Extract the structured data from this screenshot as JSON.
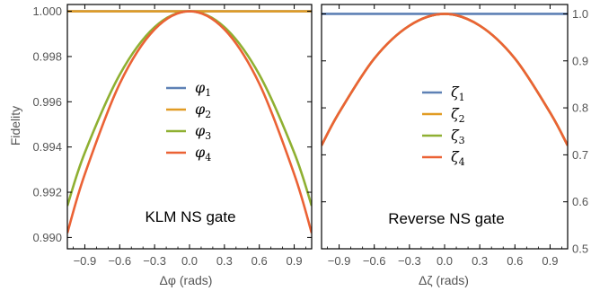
{
  "chart_data": [
    {
      "type": "line",
      "annotation": "KLM NS gate",
      "xlabel": "Δφ (rads)",
      "ylabel": "Fidelity",
      "xlim": [
        -1.05,
        1.05
      ],
      "ylim": [
        0.9895,
        1.0003
      ],
      "xticks": [
        -0.9,
        -0.6,
        -0.3,
        0.0,
        0.3,
        0.6,
        0.9
      ],
      "xtick_labels": [
        "−0.9",
        "−0.6",
        "−0.3",
        "0.0",
        "0.3",
        "0.6",
        "0.9"
      ],
      "yticks": [
        0.99,
        0.992,
        0.994,
        0.996,
        0.998,
        1.0
      ],
      "ytick_labels": [
        "0.990",
        "0.992",
        "0.994",
        "0.996",
        "0.998",
        "1.000"
      ],
      "legend_position": "center",
      "legend_symbol": "φ",
      "series": [
        {
          "name": "φ1",
          "sub": "1",
          "color": "#5e81b5",
          "x": [
            -1.05,
            0,
            1.05
          ],
          "y": [
            1.0,
            1.0,
            1.0
          ]
        },
        {
          "name": "φ2",
          "sub": "2",
          "color": "#e19c24",
          "x": [
            -1.05,
            0,
            1.05
          ],
          "y": [
            1.0,
            1.0,
            1.0
          ]
        },
        {
          "name": "φ3",
          "sub": "3",
          "color": "#8fb032",
          "x": [
            -1.05,
            -0.9,
            -0.6,
            -0.3,
            0,
            0.3,
            0.6,
            0.9,
            1.05
          ],
          "y": [
            0.9914,
            0.99375,
            0.9972,
            0.9993,
            1.0,
            0.9993,
            0.9972,
            0.99375,
            0.9914
          ]
        },
        {
          "name": "φ4",
          "sub": "4",
          "color": "#eb6235",
          "x": [
            -1.05,
            -0.9,
            -0.6,
            -0.3,
            0,
            0.3,
            0.6,
            0.9,
            1.05
          ],
          "y": [
            0.9902,
            0.9928,
            0.9968,
            0.9992,
            1.0,
            0.9992,
            0.9968,
            0.9928,
            0.9902
          ]
        }
      ]
    },
    {
      "type": "line",
      "annotation": "Reverse NS gate",
      "xlabel": "Δζ (rads)",
      "ylabel": "",
      "xlim": [
        -1.05,
        1.05
      ],
      "ylim": [
        0.5,
        1.02
      ],
      "xticks": [
        -0.9,
        -0.6,
        -0.3,
        0.0,
        0.3,
        0.6,
        0.9
      ],
      "xtick_labels": [
        "−0.9",
        "−0.6",
        "−0.3",
        "0.0",
        "0.3",
        "0.6",
        "0.9"
      ],
      "yticks": [
        0.5,
        0.6,
        0.7,
        0.8,
        0.9,
        1.0
      ],
      "ytick_labels": [
        "0.5",
        "0.6",
        "0.7",
        "0.8",
        "0.9",
        "1.0"
      ],
      "y_axis_side": "right",
      "legend_position": "center",
      "legend_symbol": "ζ",
      "series": [
        {
          "name": "ζ1",
          "sub": "1",
          "color": "#5e81b5",
          "x": [
            -1.05,
            0,
            1.05
          ],
          "y": [
            1.0,
            1.0,
            1.0
          ]
        },
        {
          "name": "ζ2",
          "sub": "2",
          "color": "#e19c24",
          "x": [
            -1.05,
            -0.9,
            -0.6,
            -0.3,
            0,
            0.3,
            0.6,
            0.9,
            1.05
          ],
          "y": [
            0.72,
            0.79,
            0.905,
            0.975,
            1.0,
            0.975,
            0.905,
            0.79,
            0.72
          ]
        },
        {
          "name": "ζ3",
          "sub": "3",
          "color": "#8fb032",
          "x": [
            -1.05,
            -0.9,
            -0.6,
            -0.3,
            0,
            0.3,
            0.6,
            0.9,
            1.05
          ],
          "y": [
            0.72,
            0.79,
            0.905,
            0.975,
            1.0,
            0.975,
            0.905,
            0.79,
            0.72
          ]
        },
        {
          "name": "ζ4",
          "sub": "4",
          "color": "#eb6235",
          "x": [
            -1.05,
            -0.9,
            -0.6,
            -0.3,
            0,
            0.3,
            0.6,
            0.9,
            1.05
          ],
          "y": [
            0.72,
            0.79,
            0.905,
            0.975,
            1.0,
            0.975,
            0.905,
            0.79,
            0.72
          ]
        }
      ]
    }
  ]
}
